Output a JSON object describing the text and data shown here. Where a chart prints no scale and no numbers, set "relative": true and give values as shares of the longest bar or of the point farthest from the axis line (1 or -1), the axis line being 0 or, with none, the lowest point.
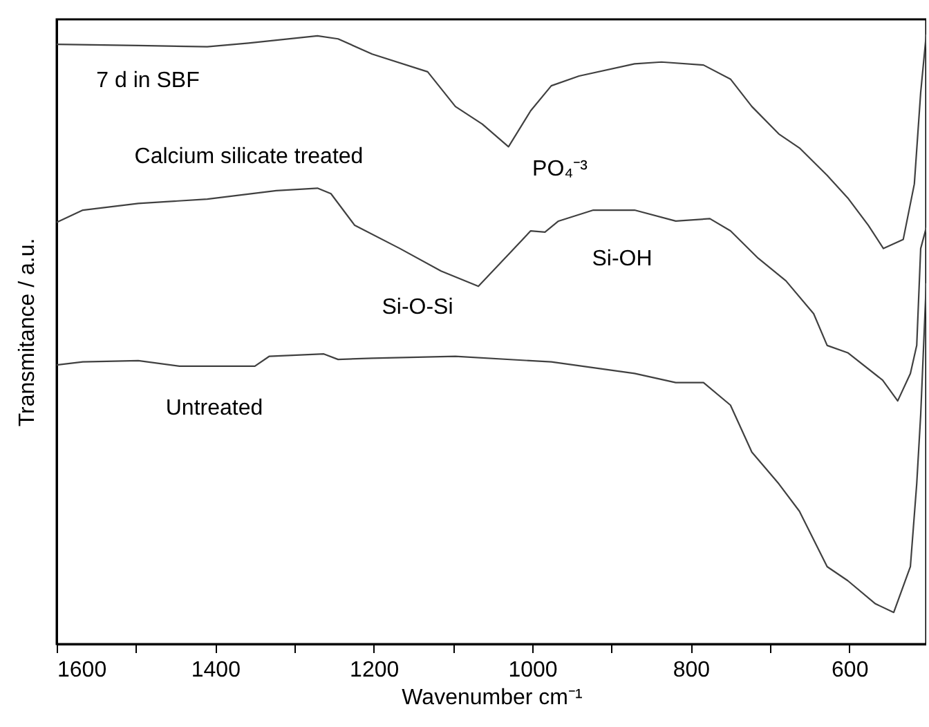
{
  "chart_data": {
    "type": "line",
    "relative": true,
    "xlabel": "Wavenumber cm⁻¹",
    "ylabel": "Transmitance / a.u.",
    "xlim": [
      1600,
      503
    ],
    "xticks": [
      1600,
      {
        "value": 1500,
        "label": null
      },
      1400,
      {
        "value": 1300,
        "label": null
      },
      1200,
      {
        "value": 1100,
        "label": null
      },
      1000,
      {
        "value": 900,
        "label": null
      },
      800,
      {
        "value": 700,
        "label": null
      },
      600
    ],
    "series": [
      {
        "name": "7 d in SBF",
        "color": "#404040",
        "x": [
          1600,
          1497,
          1410,
          1358,
          1271,
          1245,
          1202,
          1132,
          1097,
          1063,
          1030,
          1002,
          976,
          941,
          871,
          837,
          784,
          750,
          723,
          689,
          663,
          628,
          602,
          576,
          557,
          532,
          518,
          510,
          503
        ],
        "values": [
          0.984,
          0.982,
          0.98,
          0.986,
          0.998,
          0.993,
          0.968,
          0.939,
          0.882,
          0.853,
          0.816,
          0.875,
          0.916,
          0.932,
          0.952,
          0.955,
          0.95,
          0.927,
          0.882,
          0.837,
          0.814,
          0.769,
          0.732,
          0.687,
          0.649,
          0.664,
          0.755,
          0.905,
          1.0
        ]
      },
      {
        "name": "Calcium silicate treated",
        "color": "#404040",
        "x": [
          1600,
          1567,
          1497,
          1410,
          1323,
          1271,
          1254,
          1224,
          1167,
          1115,
          1068,
          1028,
          1002,
          984,
          967,
          923,
          871,
          819,
          776,
          750,
          715,
          680,
          645,
          628,
          602,
          558,
          539,
          523,
          515,
          510,
          503
        ],
        "values": [
          0.692,
          0.712,
          0.723,
          0.73,
          0.744,
          0.748,
          0.739,
          0.687,
          0.649,
          0.612,
          0.587,
          0.642,
          0.678,
          0.676,
          0.694,
          0.712,
          0.712,
          0.694,
          0.698,
          0.678,
          0.633,
          0.596,
          0.542,
          0.49,
          0.478,
          0.433,
          0.399,
          0.444,
          0.49,
          0.649,
          0.683
        ]
      },
      {
        "name": "Untreated",
        "color": "#404040",
        "x": [
          1600,
          1567,
          1497,
          1445,
          1350,
          1332,
          1263,
          1245,
          1202,
          1097,
          976,
          871,
          819,
          784,
          750,
          723,
          689,
          663,
          628,
          602,
          567,
          544,
          523,
          515,
          510,
          503
        ],
        "values": [
          0.458,
          0.463,
          0.465,
          0.456,
          0.456,
          0.472,
          0.476,
          0.467,
          0.469,
          0.472,
          0.463,
          0.444,
          0.429,
          0.429,
          0.392,
          0.315,
          0.263,
          0.218,
          0.127,
          0.104,
          0.066,
          0.052,
          0.127,
          0.263,
          0.376,
          0.592
        ]
      }
    ],
    "annotations": [
      "PO₄⁻³",
      "Si-OH",
      "Si-O-Si"
    ]
  }
}
